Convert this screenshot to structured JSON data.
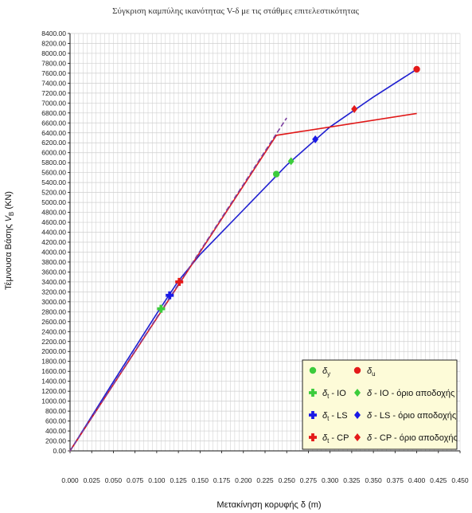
{
  "chart_data": {
    "type": "line",
    "title": "Σύγκριση καμπύλης ικανότητας V-δ με τις στάθμες επιτελεστικότητας",
    "xlabel": "Μετακίνηση κορυφής δ (m)",
    "ylabel": "Τέμνουσα Βάσης V_B (KN)",
    "ylabel_parts": {
      "prefix": "Τέμνουσα Βάσης ",
      "main": "V",
      "sub": "B",
      "suffix": " (KN)"
    },
    "xlim": [
      0,
      0.45
    ],
    "ylim": [
      0,
      8400
    ],
    "xticks": [
      "0.000",
      "0.025",
      "0.050",
      "0.075",
      "0.100",
      "0.125",
      "0.150",
      "0.175",
      "0.200",
      "0.225",
      "0.250",
      "0.275",
      "0.300",
      "0.325",
      "0.350",
      "0.375",
      "0.400",
      "0.425",
      "0.450"
    ],
    "yticks": [
      "0.00",
      "200.00",
      "400.00",
      "600.00",
      "800.00",
      "1000.00",
      "1200.00",
      "1400.00",
      "1600.00",
      "1800.00",
      "2000.00",
      "2200.00",
      "2400.00",
      "2600.00",
      "2800.00",
      "3000.00",
      "3200.00",
      "3400.00",
      "3600.00",
      "3800.00",
      "4000.00",
      "4200.00",
      "4400.00",
      "4600.00",
      "4800.00",
      "5000.00",
      "5200.00",
      "5400.00",
      "5600.00",
      "5800.00",
      "6000.00",
      "6200.00",
      "6400.00",
      "6600.00",
      "6800.00",
      "7000.00",
      "7200.00",
      "7400.00",
      "7600.00",
      "7800.00",
      "8000.00",
      "8200.00",
      "8400.00"
    ],
    "grid": true,
    "legend_position": "bottom-right",
    "colors": {
      "capacity": "#1f1fd0",
      "bilinear": "#e01818",
      "green": "#3ccc3c",
      "blue": "#1a1ae6",
      "red": "#e41a1a",
      "dashed": "#7b3fa0",
      "legend_bg": "#fdfbd8"
    },
    "series": [
      {
        "key": "capacity",
        "style": "solid",
        "color": "#1f1fd0",
        "x": [
          0.0,
          0.05,
          0.1,
          0.125,
          0.15,
          0.2,
          0.25,
          0.3,
          0.35,
          0.4
        ],
        "y": [
          0,
          1390,
          2760,
          3420,
          3950,
          4850,
          5750,
          6520,
          7120,
          7680
        ]
      },
      {
        "key": "bilinear",
        "style": "solid",
        "color": "#e01818",
        "x": [
          0.0,
          0.238,
          0.4
        ],
        "y": [
          0,
          6350,
          6790
        ]
      },
      {
        "key": "elastic-extension",
        "style": "dashed",
        "color": "#7b3fa0",
        "x": [
          0.0,
          0.25
        ],
        "y": [
          0,
          6700
        ]
      }
    ],
    "points": [
      {
        "key": "dy",
        "marker": "circle",
        "color": "#3ccc3c",
        "x": 0.238,
        "y": 5570
      },
      {
        "key": "du",
        "marker": "circle",
        "color": "#e41a1a",
        "x": 0.4,
        "y": 7680
      },
      {
        "key": "dt-io",
        "marker": "cross",
        "color": "#3ccc3c",
        "x": 0.105,
        "y": 2860
      },
      {
        "key": "dt-ls",
        "marker": "cross",
        "color": "#1a1ae6",
        "x": 0.115,
        "y": 3130
      },
      {
        "key": "dt-cp",
        "marker": "cross",
        "color": "#e41a1a",
        "x": 0.126,
        "y": 3400
      },
      {
        "key": "io-limit",
        "marker": "diamond",
        "color": "#3ccc3c",
        "x": 0.255,
        "y": 5830
      },
      {
        "key": "ls-limit",
        "marker": "diamond",
        "color": "#1a1ae6",
        "x": 0.283,
        "y": 6270
      },
      {
        "key": "cp-limit",
        "marker": "diamond",
        "color": "#e41a1a",
        "x": 0.328,
        "y": 6880
      }
    ],
    "legend": [
      {
        "marker": "circle",
        "color": "#3ccc3c",
        "symbol": "δ",
        "sub": "y",
        "suffix": ""
      },
      {
        "marker": "circle",
        "color": "#e41a1a",
        "symbol": "δ",
        "sub": "u",
        "suffix": ""
      },
      {
        "marker": "cross",
        "color": "#3ccc3c",
        "symbol": "δ",
        "sub": "t",
        "suffix": " - IO"
      },
      {
        "marker": "diamond",
        "color": "#3ccc3c",
        "symbol": "δ",
        "sub": "",
        "suffix": " - IO - όριο αποδοχής"
      },
      {
        "marker": "cross",
        "color": "#1a1ae6",
        "symbol": "δ",
        "sub": "t",
        "suffix": " - LS"
      },
      {
        "marker": "diamond",
        "color": "#1a1ae6",
        "symbol": "δ",
        "sub": "",
        "suffix": " - LS - όριο αποδοχής"
      },
      {
        "marker": "cross",
        "color": "#e41a1a",
        "symbol": "δ",
        "sub": "t",
        "suffix": " - CP"
      },
      {
        "marker": "diamond",
        "color": "#e41a1a",
        "symbol": "δ",
        "sub": "",
        "suffix": " - CP - όριο αποδοχής"
      }
    ]
  }
}
